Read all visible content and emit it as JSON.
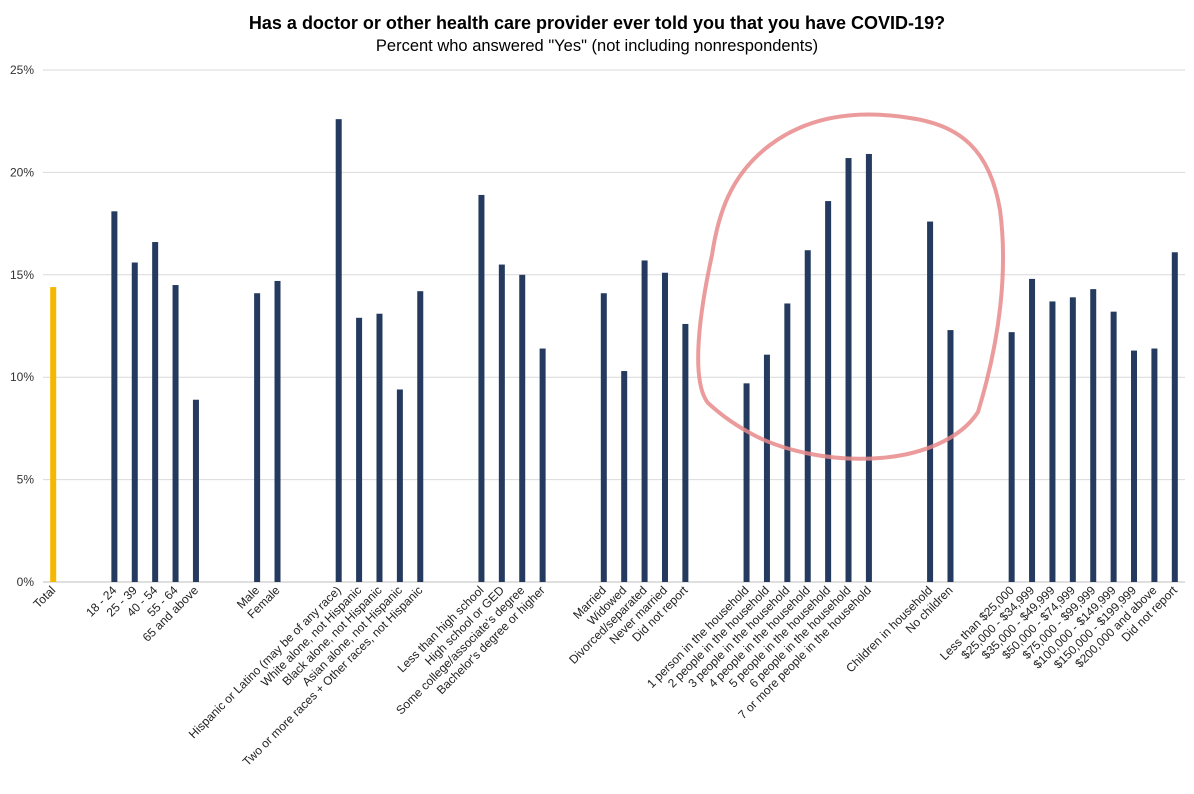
{
  "chart_data": {
    "type": "bar",
    "title": "Has a doctor or other health care provider ever told you that you have COVID-19?",
    "subtitle": "Percent who answered \"Yes\" (not including nonrespondents)",
    "y_ticks": [
      "0%",
      "5%",
      "10%",
      "15%",
      "20%",
      "25%"
    ],
    "ylim": [
      0,
      25
    ],
    "grid": true,
    "colors": {
      "default": "#243a5e",
      "highlight": "#f5b800",
      "annotation": "#e8898a"
    },
    "annotation": "hand-drawn red circle around household-size bars",
    "categories": [
      "Total",
      "",
      "",
      "18 - 24",
      "25 - 39",
      "40 - 54",
      "55 - 64",
      "65 and above",
      "",
      "",
      "Male",
      "Female",
      "",
      "",
      "Hispanic or Latino (may be of any race)",
      "White alone, not Hispanic",
      "Black alone, not Hispanic",
      "Asian alone, not Hispanic",
      "Two or more races + Other races, not Hispanic",
      "",
      "",
      "Less than high school",
      "High school or GED",
      "Some college/associate's degree",
      "Bachelor's degree or higher",
      "",
      "",
      "Married",
      "Widowed",
      "Divorced/separated",
      "Never married",
      "Did not report",
      "",
      "",
      "1 person in the household",
      "2 people in the household",
      "3 people in the household",
      "4 people in the household",
      "5 people in the household",
      "6 people in the household",
      "7 or more people in the household",
      "",
      "",
      "Children in household",
      "No children",
      "",
      "",
      "Less than $25,000",
      "$25,000 - $34,999",
      "$35,000 - $49,999",
      "$50,000 - $74,999",
      "$75,000 - $99,999",
      "$100,000 - $149,999",
      "$150,000 - $199,999",
      "$200,000 and above",
      "Did not report"
    ],
    "values": [
      14.4,
      null,
      null,
      18.1,
      15.6,
      16.6,
      14.5,
      8.9,
      null,
      null,
      14.1,
      14.7,
      null,
      null,
      22.6,
      12.9,
      13.1,
      9.4,
      14.2,
      null,
      null,
      18.9,
      15.5,
      15.0,
      11.4,
      null,
      null,
      14.1,
      10.3,
      15.7,
      15.1,
      12.6,
      null,
      null,
      9.7,
      11.1,
      13.6,
      16.2,
      18.6,
      20.7,
      20.9,
      null,
      null,
      17.6,
      12.3,
      null,
      null,
      12.2,
      14.8,
      13.7,
      13.9,
      14.3,
      13.2,
      11.3,
      11.4,
      16.1
    ]
  }
}
